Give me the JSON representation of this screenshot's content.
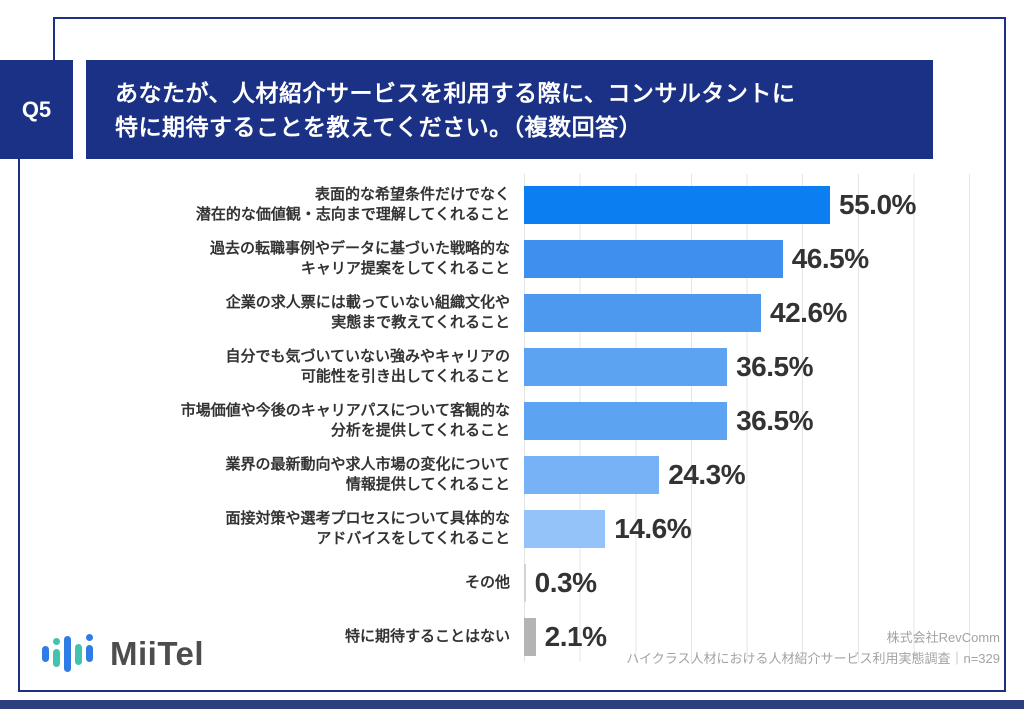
{
  "header": {
    "badge": "Q5",
    "title_line1": "あなたが、人材紹介サービスを利用する際に、コンサルタントに",
    "title_line2": "特に期待することを教えてください。（複数回答）"
  },
  "footer": {
    "logo_text": "MiiTel",
    "source_line1": "株式会社RevComm",
    "source_line2": "ハイクラス人材における人材紹介サービス利用実態調査｜n=329"
  },
  "colors": {
    "navy": "#1b3185",
    "value_text": "#333333",
    "gridline": "#e4e4e4",
    "logo_blue": "#2e7ce5",
    "logo_teal": "#42c3ae"
  },
  "chart_data": {
    "type": "bar",
    "orientation": "horizontal",
    "unit": "%",
    "xlim": [
      0,
      86
    ],
    "gridline_interval": 10,
    "grid": true,
    "categories": [
      "表面的な希望条件だけでなく 潜在的な価値観・志向まで理解してくれること",
      "過去の転職事例やデータに基づいた戦略的な キャリア提案をしてくれること",
      "企業の求人票には載っていない組織文化や 実態まで教えてくれること",
      "自分でも気づいていない強みやキャリアの 可能性を引き出してくれること",
      "市場価値や今後のキャリアパスについて客観的な 分析を提供してくれること",
      "業界の最新動向や求人市場の変化について 情報提供してくれること",
      "面接対策や選考プロセスについて具体的な アドバイスをしてくれること",
      "その他",
      "特に期待することはない"
    ],
    "category_lines": [
      [
        "表面的な希望条件だけでなく",
        "潜在的な価値観・志向まで理解してくれること"
      ],
      [
        "過去の転職事例やデータに基づいた戦略的な",
        "キャリア提案をしてくれること"
      ],
      [
        "企業の求人票には載っていない組織文化や",
        "実態まで教えてくれること"
      ],
      [
        "自分でも気づいていない強みやキャリアの",
        "可能性を引き出してくれること"
      ],
      [
        "市場価値や今後のキャリアパスについて客観的な",
        "分析を提供してくれること"
      ],
      [
        "業界の最新動向や求人市場の変化について",
        "情報提供してくれること"
      ],
      [
        "面接対策や選考プロセスについて具体的な",
        "アドバイスをしてくれること"
      ],
      [
        "その他"
      ],
      [
        "特に期待することはない"
      ]
    ],
    "values": [
      55.0,
      46.5,
      42.6,
      36.5,
      36.5,
      24.3,
      14.6,
      0.3,
      2.1
    ],
    "value_labels": [
      "55.0%",
      "46.5%",
      "42.6%",
      "36.5%",
      "36.5%",
      "24.3%",
      "14.6%",
      "0.3%",
      "2.1%"
    ],
    "bar_colors": [
      "#0b7ef2",
      "#3f90ee",
      "#4d99f0",
      "#5ca4f2",
      "#5ca4f2",
      "#76b2f5",
      "#93c3f8",
      "#d2d2d2",
      "#b4b4b4"
    ]
  }
}
